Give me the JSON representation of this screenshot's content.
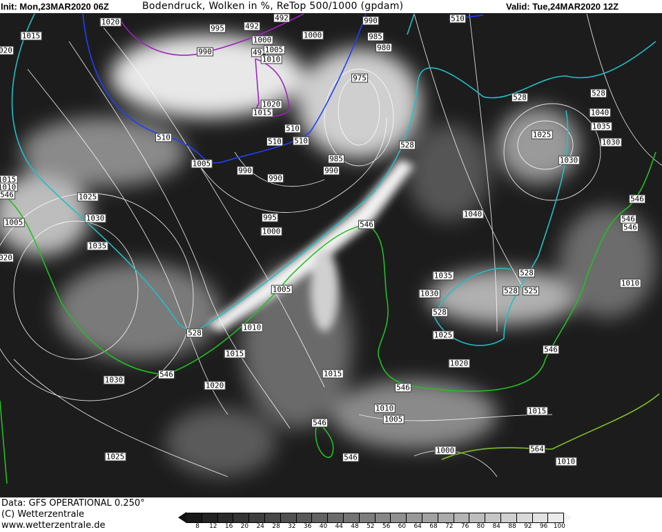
{
  "header": {
    "init": "Init: Mon,23MAR2020 06Z",
    "title": "Bodendruck, Wolken in %, ReTop 500/1000 (gpdam)",
    "valid": "Valid: Tue,24MAR2020 12Z"
  },
  "footer": {
    "data_source": "Data: GFS OPERATIONAL 0.250°",
    "copyright": "(C) Wetterzentrale",
    "website": "www.wetterzentrale.de"
  },
  "colors": {
    "background": "#1c1c1c",
    "isobar": "#ffffff",
    "retop_492": "#a020c0",
    "retop_510": "#2040ff",
    "retop_528": "#20c0c8",
    "retop_546": "#20c020",
    "retop_564": "#80c020",
    "coastline": "#ffffff"
  },
  "legend": {
    "type": "cloud cover %",
    "ticks": [
      "8",
      "12",
      "16",
      "20",
      "24",
      "28",
      "32",
      "36",
      "40",
      "44",
      "48",
      "52",
      "56",
      "60",
      "64",
      "68",
      "72",
      "76",
      "80",
      "84",
      "88",
      "92",
      "96",
      "100"
    ]
  },
  "map": {
    "labels": [
      "1015",
      "1020",
      "995",
      "492",
      "492",
      "1000",
      "990",
      "492",
      "1005",
      "1010",
      "1000",
      "990",
      "985",
      "980",
      "975",
      "1020",
      "1015",
      "510",
      "510",
      "510",
      "510",
      "985",
      "990",
      "990",
      "1005",
      "990",
      "528",
      "510",
      "528",
      "528",
      "1040",
      "1035",
      "1030",
      "1025",
      "1030",
      "1015",
      "1010",
      "546",
      "1025",
      "1030",
      "1005",
      "995",
      "1000",
      "546",
      "1035",
      "020",
      "1040",
      "546",
      "546",
      "546",
      "1035",
      "1030",
      "528",
      "525",
      "528",
      "528",
      "1005",
      "1010",
      "528",
      "1025",
      "1010",
      "546",
      "1015",
      "1020",
      "1015",
      "546",
      "1030",
      "1020",
      "546",
      "1010",
      "1005",
      "1015",
      "546",
      "1000",
      "564",
      "1010",
      "1025",
      "546",
      "020"
    ]
  }
}
